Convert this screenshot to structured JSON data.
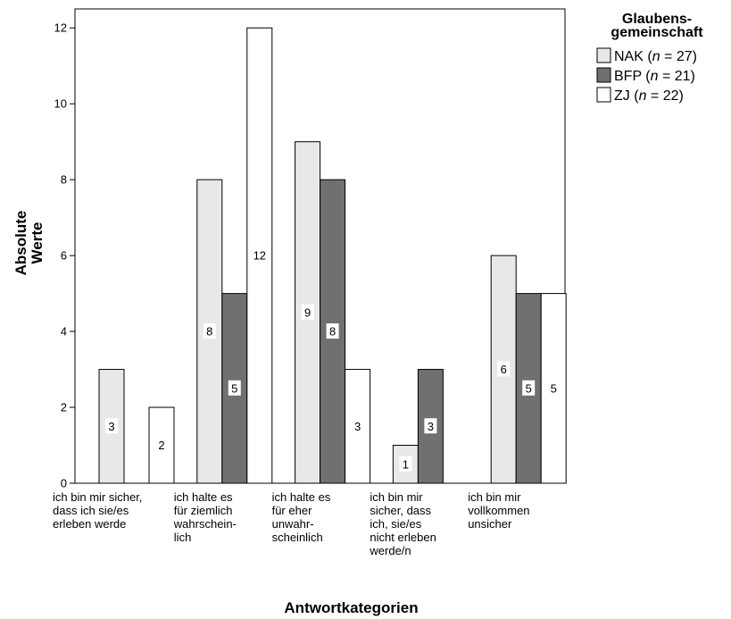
{
  "chart_data": {
    "type": "bar",
    "xlabel": "Antwortkategorien",
    "ylabel": [
      "Absolute",
      "Werte"
    ],
    "ylim": [
      0,
      12.5
    ],
    "yticks": [
      0,
      2,
      4,
      6,
      8,
      10,
      12
    ],
    "grid": false,
    "legend_position": "top-right",
    "categories": [
      [
        "ich bin mir sicher,",
        "dass ich sie/es",
        "erleben werde"
      ],
      [
        "ich halte es",
        "für ziemlich",
        "wahrschein-",
        "lich"
      ],
      [
        "ich halte es",
        "für eher",
        "unwahr-",
        "scheinlich"
      ],
      [
        "ich bin mir",
        "sicher, dass",
        "ich, sie/es",
        "nicht erleben",
        "werde/n"
      ],
      [
        "ich bin mir",
        "vollkommen",
        "unsicher"
      ]
    ],
    "legend": {
      "title": [
        "Glaubens-",
        "gemeinschaft"
      ]
    },
    "series": [
      {
        "name": "NAK",
        "n_label": "27",
        "color": "#e8e8e8",
        "label_bg": "#ffffff",
        "label_color": "#000000",
        "values": [
          3,
          8,
          9,
          1,
          6
        ]
      },
      {
        "name": "BFP",
        "n_label": "21",
        "color": "#707070",
        "label_bg": "#ffffff",
        "label_color": "#000000",
        "values": [
          0,
          5,
          8,
          3,
          5
        ]
      },
      {
        "name": "ZJ",
        "n_label": "22",
        "color": "#ffffff",
        "label_bg": "#ffffff",
        "label_color": "#000000",
        "values": [
          2,
          12,
          3,
          0,
          5
        ]
      }
    ]
  }
}
